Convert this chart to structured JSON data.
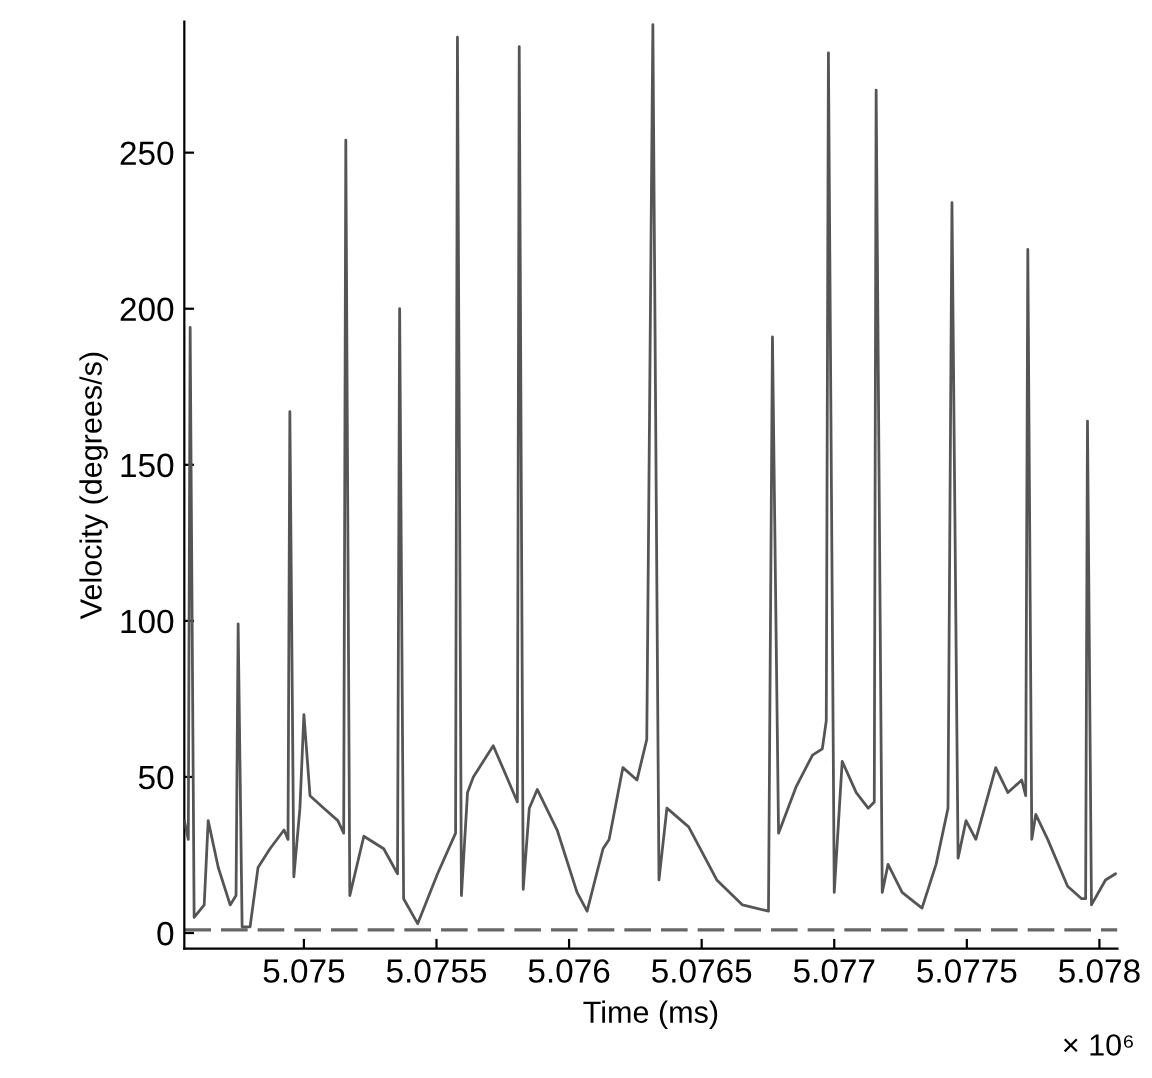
{
  "chart_data": {
    "type": "line",
    "xlabel": "Time (ms)",
    "ylabel": "Velocity (degrees/s)",
    "x": [
      5.074549,
      5.074564,
      5.074571,
      5.074586,
      5.074624,
      5.074639,
      5.074677,
      5.074722,
      5.074744,
      5.074752,
      5.074767,
      5.074797,
      5.074827,
      5.074872,
      5.074925,
      5.07494,
      5.074947,
      5.074962,
      5.074985,
      5.075,
      5.075023,
      5.075075,
      5.075128,
      5.07515,
      5.075158,
      5.075173,
      5.075226,
      5.075301,
      5.075353,
      5.075361,
      5.075376,
      5.075429,
      5.075504,
      5.075572,
      5.075579,
      5.075594,
      5.075617,
      5.075639,
      5.075714,
      5.075775,
      5.075805,
      5.075812,
      5.075827,
      5.07585,
      5.07588,
      5.075955,
      5.07603,
      5.076068,
      5.076128,
      5.076151,
      5.076203,
      5.076256,
      5.076293,
      5.076316,
      5.076339,
      5.076369,
      5.076451,
      5.076557,
      5.076654,
      5.076752,
      5.076767,
      5.07679,
      5.076857,
      5.076918,
      5.076955,
      5.07697,
      5.076978,
      5.077,
      5.07703,
      5.077083,
      5.077128,
      5.077151,
      5.077158,
      5.077181,
      5.077203,
      5.077256,
      5.077331,
      5.077384,
      5.077429,
      5.077444,
      5.077467,
      5.077497,
      5.077534,
      5.077609,
      5.077655,
      5.077707,
      5.077722,
      5.07773,
      5.077745,
      5.07776,
      5.077805,
      5.07788,
      5.077933,
      5.077948,
      5.077955,
      5.07797,
      5.078023,
      5.078061
    ],
    "series": [
      {
        "color": "#555555",
        "values": [
          36,
          30,
          194,
          5,
          9,
          36,
          21,
          9,
          12,
          99,
          2,
          2,
          21,
          27,
          33,
          30,
          167,
          18,
          40,
          70,
          44,
          40,
          36,
          32,
          254,
          12,
          31,
          27,
          19,
          200,
          11,
          3,
          19,
          32,
          287,
          12,
          45,
          50,
          60,
          48,
          42,
          284,
          14,
          40,
          46,
          33,
          13,
          7,
          27,
          30,
          53,
          49,
          62,
          291,
          17,
          40,
          34,
          17,
          9,
          7,
          191,
          32,
          47,
          57,
          59,
          68,
          282,
          13,
          55,
          45,
          40,
          42,
          270,
          13,
          22,
          13,
          8,
          22,
          40,
          234,
          24,
          36,
          30,
          53,
          45,
          49,
          44,
          219,
          30,
          38,
          30,
          15,
          11,
          11,
          164,
          9,
          17,
          19
        ]
      }
    ],
    "xlim": [
      5.074549,
      5.078068
    ],
    "ylim": [
      -5,
      292
    ],
    "xticks": [
      5.075,
      5.0755,
      5.076,
      5.0765,
      5.077,
      5.0775,
      5.078
    ],
    "yticks": [
      0,
      50,
      100,
      150,
      200,
      250
    ],
    "ref_lines": [
      {
        "axis": "y",
        "value": 1,
        "color": "#666666",
        "line_style": "dashed"
      }
    ],
    "annotations": [
      "× 10⁶"
    ],
    "grid": false,
    "legend": false,
    "line_style": "solid",
    "marker": "none"
  }
}
